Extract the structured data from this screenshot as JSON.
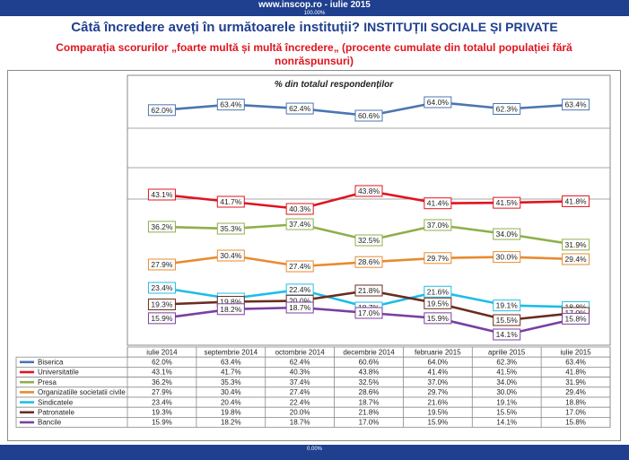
{
  "header": {
    "source": "www.inscop.ro   -   iulie 2015",
    "top_percent": "100.00%"
  },
  "footer": {
    "bottom_percent": "0.00%"
  },
  "title_main": "Câtă încredere aveți în următoarele instituții?",
  "title_emph": "INSTITUȚII SOCIALE ȘI PRIVATE",
  "subtitle": "Comparația scorurilor „foarte multă și multă încredere„ (procente cumulate din totalul populației fără nonrăspunsuri)",
  "chart_data": {
    "type": "line",
    "title": "% din totalul respondenților",
    "categories": [
      "iulie 2014",
      "septembrie 2014",
      "octombrie 2014",
      "decembrie 2014",
      "februarie 2015",
      "aprilie 2015",
      "iulie 2015"
    ],
    "series": [
      {
        "name": "Biserica",
        "color": "#4a76b0",
        "values": [
          62.0,
          63.4,
          62.4,
          60.6,
          64.0,
          62.3,
          63.4
        ],
        "labels": [
          "62.0%",
          "63.4%",
          "62.4%",
          "60.6%",
          "64.0%",
          "62.3%",
          "63.4%"
        ],
        "table": [
          "62.0%",
          "63.4%",
          "62.4%",
          "60.6%",
          "64.0%",
          "62.3%",
          "63.4%"
        ]
      },
      {
        "name": "Universitatile",
        "color": "#e0141e",
        "values": [
          43.1,
          41.7,
          40.3,
          43.8,
          41.4,
          41.5,
          41.8
        ],
        "labels": [
          "43.1%",
          "41.7%",
          "40.3%",
          "43.8%",
          "41.4%",
          "41.5%",
          "41.8%"
        ],
        "table": [
          "43.1%",
          "41.7%",
          "40.3%",
          "43.8%",
          "41.4%",
          "41.5%",
          "41.8%"
        ]
      },
      {
        "name": "Presa",
        "color": "#8db04a",
        "values": [
          36.2,
          35.3,
          37.4,
          32.5,
          37.0,
          34.0,
          31.9
        ],
        "labels": [
          "36.2%",
          "35.3%",
          "37.4%",
          "32.5%",
          "37.0%",
          "34.0%",
          "31.9%"
        ],
        "table": [
          "36.2%",
          "35.3%",
          "37.4%",
          "32.5%",
          "37.0%",
          "34.0%",
          "31.9%"
        ]
      },
      {
        "name": "Organizatiile societatii civile",
        "color": "#e98a2e",
        "values": [
          27.9,
          30.4,
          27.4,
          28.6,
          29.7,
          30.0,
          29.4
        ],
        "labels": [
          "27.9%",
          "30.4%",
          "27.4%",
          "28.6%",
          "29.7%",
          "30.0%",
          "29.4%"
        ],
        "table": [
          "27.9%",
          "30.4%",
          "27.4%",
          "28.6%",
          "29.7%",
          "30.0%",
          "29.4%"
        ]
      },
      {
        "name": "Sindicatele",
        "color": "#1fbde8",
        "values": [
          23.4,
          20.4,
          22.4,
          18.7,
          21.6,
          19.1,
          18.8
        ],
        "labels": [
          "23.4%",
          "20.4%",
          "22.4%",
          "18.7%",
          "21.6%",
          "19.1%",
          "18.8%"
        ],
        "table": [
          "23.4%",
          "20.4%",
          "22.4%",
          "18.7%",
          "21.6%",
          "19.1%",
          "18.8%"
        ]
      },
      {
        "name": "Patronatele",
        "color": "#6b2c1e",
        "values": [
          19.3,
          19.8,
          20.0,
          21.8,
          19.5,
          15.5,
          17.0
        ],
        "labels": [
          "19.3%",
          "19.8%",
          "20.0%",
          "21.8%",
          "19.5%",
          "15.5%",
          "17.0%"
        ],
        "table": [
          "19.3%",
          "19.8%",
          "20.0%",
          "21.8%",
          "19.5%",
          "15.5%",
          "17.0%"
        ]
      },
      {
        "name": "Bancile",
        "color": "#7a3fa0",
        "values": [
          15.9,
          18.2,
          18.7,
          17.0,
          15.9,
          14.1,
          15.8
        ],
        "labels": [
          "15.9%",
          "18.2%",
          "18.7%",
          "17.0%",
          "15.9%",
          "14.1%",
          "15.8%"
        ],
        "table": [
          "15.9%",
          "18.2%",
          "18.7%",
          "17.0%",
          "15.9%",
          "14.1%",
          "15.8%"
        ]
      }
    ],
    "legend": "table-bottom",
    "grid": "horizontal"
  }
}
